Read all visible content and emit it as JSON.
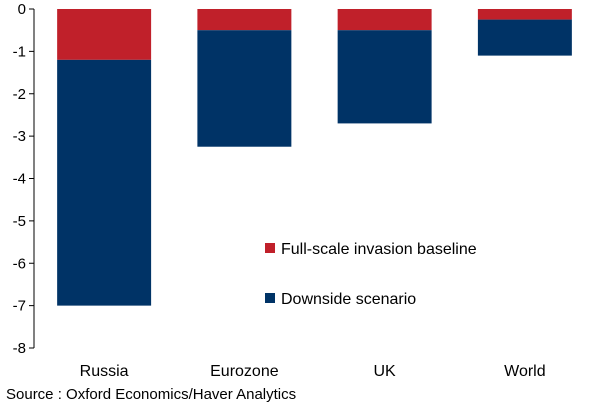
{
  "chart_data": {
    "type": "bar",
    "stacked": true,
    "categories": [
      "Russia",
      "Eurozone",
      "UK",
      "World"
    ],
    "series": [
      {
        "name": "Full-scale invasion baseline",
        "color": "#c0202a",
        "values": [
          -1.2,
          -0.5,
          -0.5,
          -0.25
        ]
      },
      {
        "name": "Downside scenario",
        "color": "#003366",
        "values": [
          -5.8,
          -2.75,
          -2.2,
          -0.85
        ]
      }
    ],
    "ylim": [
      -8,
      0
    ],
    "yticks": [
      0,
      -1,
      -2,
      -3,
      -4,
      -5,
      -6,
      -7,
      -8
    ],
    "grid": false,
    "legend_position": "inside-lower-right"
  },
  "source": "Source : Oxford Economics/Haver Analytics"
}
